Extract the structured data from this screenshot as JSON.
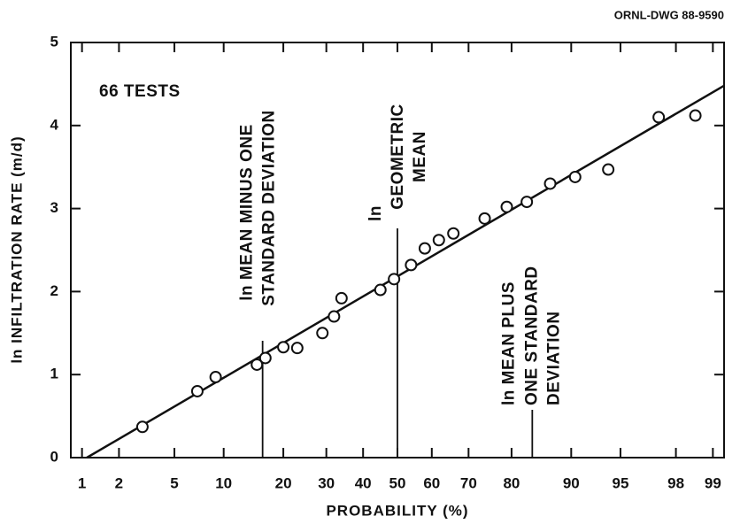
{
  "chart_data": {
    "type": "scatter",
    "note": "ORNL-DWG 88-9590",
    "text": "66 TESTS",
    "x_label": "PROBABILITY (%)",
    "y_label": "ln INFILTRATION RATE (m/d)",
    "xscale": "probability",
    "xlim": [
      0.8,
      99.2
    ],
    "ylim": [
      0,
      5
    ],
    "xticks": [
      1,
      2,
      5,
      10,
      20,
      30,
      40,
      50,
      60,
      70,
      80,
      90,
      95,
      98,
      99
    ],
    "yticks": [
      0,
      1,
      2,
      3,
      4,
      5
    ],
    "grid": false,
    "color": "#111111",
    "x": [
      3,
      7,
      9,
      15,
      16.5,
      20,
      23,
      29,
      32,
      34,
      45,
      49,
      54,
      58,
      62,
      66,
      74,
      79,
      83,
      87,
      90.5,
      94,
      97.3,
      98.6
    ],
    "values": [
      0.37,
      0.8,
      0.97,
      1.12,
      1.2,
      1.33,
      1.32,
      1.5,
      1.7,
      1.92,
      2.02,
      2.15,
      2.32,
      2.52,
      2.62,
      2.7,
      2.88,
      3.02,
      3.08,
      3.3,
      3.38,
      3.47,
      4.1,
      4.12
    ],
    "fit_line": {
      "x": [
        1.1,
        99.2
      ],
      "values": [
        0,
        4.48
      ]
    },
    "annotations": [
      {
        "x": 16,
        "lines": [
          "ln MEAN MINUS ONE",
          "STANDARD DEVIATION"
        ]
      },
      {
        "x": 50,
        "lines": [
          "ln",
          "GEOMETRIC",
          "MEAN"
        ]
      },
      {
        "x": 84,
        "lines": [
          "ln MEAN PLUS",
          "ONE STANDARD",
          "DEVIATION"
        ]
      }
    ]
  }
}
